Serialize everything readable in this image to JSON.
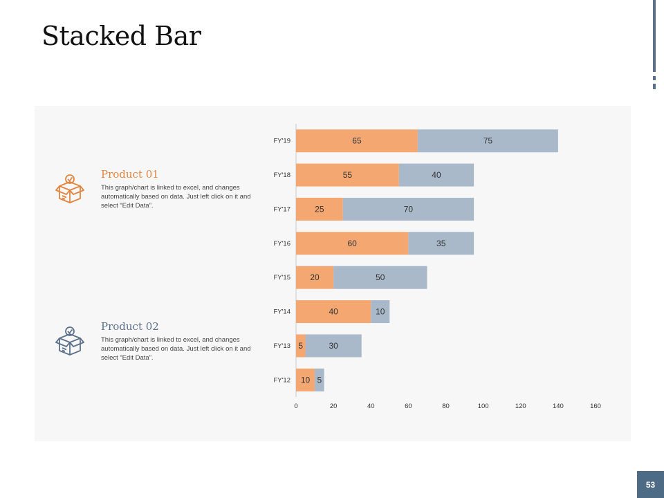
{
  "title": "Stacked Bar",
  "page_number": "53",
  "colors": {
    "product1": "#f4a771",
    "product2": "#a9b9ca",
    "title1": "#e0843f",
    "title2": "#5b7089"
  },
  "products": [
    {
      "name": "Product 01",
      "icon": "box-check-icon",
      "description": "This graph/chart is linked to excel, and changes automatically based on data. Just left click on it and select “Edit Data”."
    },
    {
      "name": "Product 02",
      "icon": "box-check-icon",
      "description": "This graph/chart is linked to excel, and changes automatically based on data. Just left click on it and select “Edit Data”."
    }
  ],
  "chart_data": {
    "type": "bar",
    "orientation": "horizontal",
    "stacked": true,
    "categories": [
      "FY'12",
      "FY'13",
      "FY'14",
      "FY'15",
      "FY'16",
      "FY'17",
      "FY'18",
      "FY'19"
    ],
    "series": [
      {
        "name": "Product 01",
        "values": [
          10,
          5,
          40,
          20,
          60,
          25,
          55,
          65
        ]
      },
      {
        "name": "Product 02",
        "values": [
          5,
          30,
          10,
          50,
          35,
          70,
          40,
          75
        ]
      }
    ],
    "xlim": [
      0,
      160
    ],
    "xticks": [
      0,
      20,
      40,
      60,
      80,
      100,
      120,
      140,
      160
    ],
    "title": "",
    "xlabel": "",
    "ylabel": ""
  }
}
